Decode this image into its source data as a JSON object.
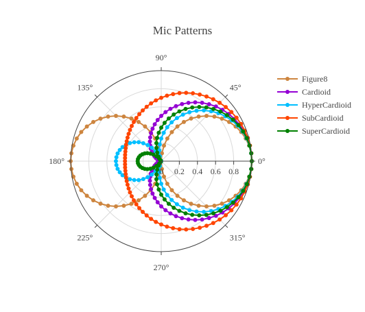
{
  "chart_data": {
    "type": "polar-line",
    "title": "Mic Patterns",
    "angular_axis": {
      "unit": "degrees",
      "direction": "counterclockwise",
      "rotation": 0,
      "tick_labels": [
        "0°",
        "45°",
        "90°",
        "135°",
        "180°",
        "225°",
        "270°",
        "315°"
      ]
    },
    "radial_axis": {
      "range": [
        0,
        1
      ],
      "tick_labels": [
        "0",
        "0.2",
        "0.4",
        "0.6",
        "0.8"
      ],
      "tick_values": [
        0,
        0.2,
        0.4,
        0.6,
        0.8
      ],
      "angle": 0
    },
    "grid": true,
    "legend_placement": "top-right",
    "theta": [
      0,
      5,
      10,
      15,
      20,
      25,
      30,
      35,
      40,
      45,
      50,
      55,
      60,
      65,
      70,
      75,
      80,
      85,
      90,
      95,
      100,
      105,
      110,
      115,
      120,
      125,
      130,
      135,
      140,
      145,
      150,
      155,
      160,
      165,
      170,
      175,
      180,
      185,
      190,
      195,
      200,
      205,
      210,
      215,
      220,
      225,
      230,
      235,
      240,
      245,
      250,
      255,
      260,
      265,
      270,
      275,
      280,
      285,
      290,
      295,
      300,
      305,
      310,
      315,
      320,
      325,
      330,
      335,
      340,
      345,
      350,
      355,
      360
    ],
    "series": [
      {
        "name": "Figure8",
        "color": "#cd853f",
        "formula": "abs(cos θ)",
        "r": [
          1,
          0.996,
          0.985,
          0.966,
          0.94,
          0.906,
          0.866,
          0.819,
          0.766,
          0.707,
          0.643,
          0.574,
          0.5,
          0.423,
          0.342,
          0.259,
          0.174,
          0.087,
          0,
          0.087,
          0.174,
          0.259,
          0.342,
          0.423,
          0.5,
          0.574,
          0.643,
          0.707,
          0.766,
          0.819,
          0.866,
          0.906,
          0.94,
          0.966,
          0.985,
          0.996,
          1,
          0.996,
          0.985,
          0.966,
          0.94,
          0.906,
          0.866,
          0.819,
          0.766,
          0.707,
          0.643,
          0.574,
          0.5,
          0.423,
          0.342,
          0.259,
          0.174,
          0.087,
          0,
          0.087,
          0.174,
          0.259,
          0.342,
          0.423,
          0.5,
          0.574,
          0.643,
          0.707,
          0.766,
          0.819,
          0.866,
          0.906,
          0.94,
          0.966,
          0.985,
          0.996,
          1
        ]
      },
      {
        "name": "Cardioid",
        "color": "#9400d3",
        "formula": "0.5 + 0.5 cos θ",
        "r": [
          1,
          0.998,
          0.992,
          0.983,
          0.97,
          0.953,
          0.933,
          0.91,
          0.883,
          0.854,
          0.821,
          0.787,
          0.75,
          0.711,
          0.671,
          0.629,
          0.587,
          0.544,
          0.5,
          0.456,
          0.413,
          0.371,
          0.329,
          0.289,
          0.25,
          0.213,
          0.179,
          0.146,
          0.117,
          0.09,
          0.067,
          0.047,
          0.03,
          0.017,
          0.008,
          0.002,
          0,
          0.002,
          0.008,
          0.017,
          0.03,
          0.047,
          0.067,
          0.09,
          0.117,
          0.146,
          0.179,
          0.213,
          0.25,
          0.289,
          0.329,
          0.371,
          0.413,
          0.456,
          0.5,
          0.544,
          0.587,
          0.629,
          0.671,
          0.711,
          0.75,
          0.787,
          0.821,
          0.854,
          0.883,
          0.91,
          0.933,
          0.953,
          0.97,
          0.983,
          0.992,
          0.998,
          1
        ]
      },
      {
        "name": "HyperCardioid",
        "color": "#00bfff",
        "formula": "abs(0.25 + 0.75 cos θ)",
        "r": [
          1,
          0.997,
          0.989,
          0.974,
          0.955,
          0.93,
          0.9,
          0.864,
          0.825,
          0.78,
          0.732,
          0.68,
          0.625,
          0.567,
          0.507,
          0.444,
          0.38,
          0.315,
          0.25,
          0.185,
          0.12,
          0.056,
          0.007,
          0.067,
          0.125,
          0.18,
          0.232,
          0.28,
          0.325,
          0.364,
          0.4,
          0.43,
          0.455,
          0.474,
          0.489,
          0.497,
          0.5,
          0.497,
          0.489,
          0.474,
          0.455,
          0.43,
          0.4,
          0.364,
          0.325,
          0.28,
          0.232,
          0.18,
          0.125,
          0.067,
          0.007,
          0.056,
          0.12,
          0.185,
          0.25,
          0.315,
          0.38,
          0.444,
          0.507,
          0.567,
          0.625,
          0.68,
          0.732,
          0.78,
          0.825,
          0.864,
          0.9,
          0.93,
          0.955,
          0.974,
          0.989,
          0.997,
          1
        ]
      },
      {
        "name": "SubCardioid",
        "color": "#ff4500",
        "formula": "0.7 + 0.3 cos θ",
        "r": [
          1,
          0.999,
          0.995,
          0.99,
          0.982,
          0.972,
          0.96,
          0.946,
          0.93,
          0.912,
          0.893,
          0.872,
          0.85,
          0.827,
          0.803,
          0.778,
          0.752,
          0.726,
          0.7,
          0.674,
          0.648,
          0.622,
          0.597,
          0.573,
          0.55,
          0.528,
          0.507,
          0.488,
          0.47,
          0.454,
          0.44,
          0.428,
          0.418,
          0.41,
          0.405,
          0.401,
          0.4,
          0.401,
          0.405,
          0.41,
          0.418,
          0.428,
          0.44,
          0.454,
          0.47,
          0.488,
          0.507,
          0.528,
          0.55,
          0.573,
          0.597,
          0.622,
          0.648,
          0.674,
          0.7,
          0.726,
          0.752,
          0.778,
          0.803,
          0.827,
          0.85,
          0.872,
          0.893,
          0.912,
          0.93,
          0.946,
          0.96,
          0.972,
          0.982,
          0.99,
          0.995,
          0.999,
          1
        ]
      },
      {
        "name": "SuperCardioid",
        "color": "#008000",
        "formula": "abs(0.37 + 0.63 cos θ)",
        "r": [
          1,
          0.998,
          0.99,
          0.979,
          0.962,
          0.941,
          0.916,
          0.886,
          0.853,
          0.815,
          0.775,
          0.731,
          0.685,
          0.636,
          0.585,
          0.533,
          0.479,
          0.425,
          0.37,
          0.315,
          0.261,
          0.207,
          0.155,
          0.104,
          0.055,
          0.009,
          0.035,
          0.075,
          0.113,
          0.146,
          0.176,
          0.201,
          0.222,
          0.239,
          0.25,
          0.258,
          0.26,
          0.258,
          0.25,
          0.239,
          0.222,
          0.201,
          0.176,
          0.146,
          0.113,
          0.075,
          0.035,
          0.009,
          0.055,
          0.104,
          0.155,
          0.207,
          0.261,
          0.315,
          0.37,
          0.425,
          0.479,
          0.533,
          0.585,
          0.636,
          0.685,
          0.731,
          0.775,
          0.815,
          0.853,
          0.886,
          0.916,
          0.941,
          0.962,
          0.979,
          0.99,
          0.998,
          1
        ]
      }
    ]
  }
}
